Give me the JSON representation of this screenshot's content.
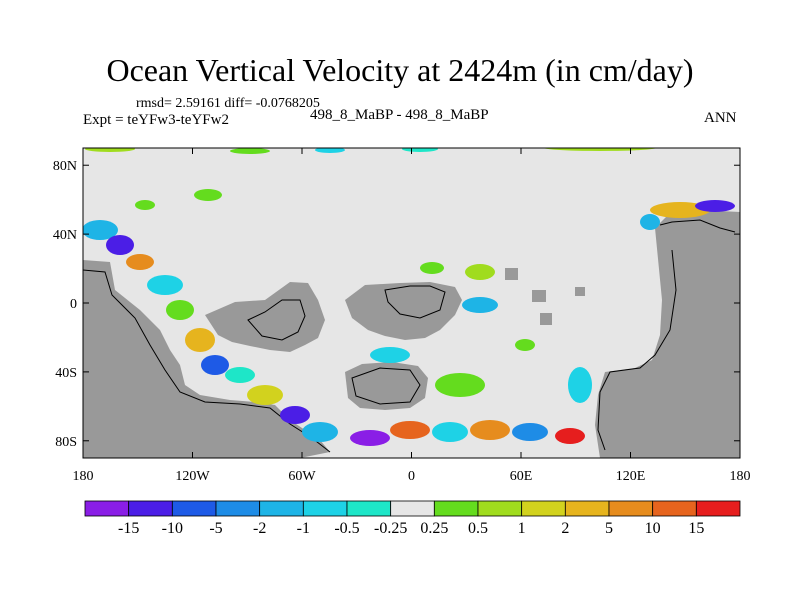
{
  "title": "Ocean Vertical Velocity at 2424m (in cm/day)",
  "stats": "rmsd= 2.59161 diff= -0.0768205",
  "experiment": "Expt = teYFw3-teYFw2",
  "cases": "498_8_MaBP - 498_8_MaBP",
  "season": "ANN",
  "colors": {
    "land": "#999999",
    "near_zero": "#e6e6e6",
    "coastline": "#000000"
  },
  "chart_data": {
    "type": "heatmap",
    "title": "Ocean Vertical Velocity at 2424m (in cm/day)",
    "units": "cm/day",
    "x_axis": {
      "range": [
        -180,
        180
      ],
      "ticks": [
        -180,
        -120,
        -60,
        0,
        60,
        120,
        180
      ],
      "tick_labels": [
        "180",
        "120W",
        "60W",
        "0",
        "60E",
        "120E",
        "180"
      ]
    },
    "y_axis": {
      "range": [
        -90,
        90
      ],
      "ticks": [
        80,
        40,
        0,
        -40,
        -80
      ],
      "tick_labels": [
        "80N",
        "40N",
        "0",
        "40S",
        "80S"
      ]
    },
    "colorbar": {
      "levels": [
        "-15",
        "-10",
        "-5",
        "-2",
        "-1",
        "-0.5",
        "-0.25",
        "0.25",
        "0.5",
        "1",
        "2",
        "5",
        "10",
        "15"
      ],
      "colors": [
        "#8a1ee6",
        "#4b1ee6",
        "#1e5ae6",
        "#1e8ce6",
        "#1eb4e6",
        "#1ed2e6",
        "#1ee6c8",
        "#e6e6e6",
        "#64dc1e",
        "#a0dc1e",
        "#d2d21e",
        "#e6b41e",
        "#e68c1e",
        "#e6641e",
        "#e61e1e"
      ]
    }
  }
}
